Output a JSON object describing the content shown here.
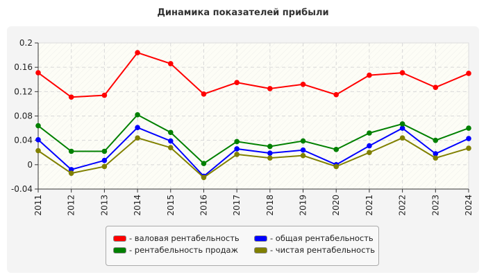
{
  "chart_data": {
    "type": "line",
    "title": "Динамика показателей прибыли",
    "xlabel": "",
    "ylabel": "",
    "x": [
      "2011",
      "2012",
      "2013",
      "2014",
      "2015",
      "2016",
      "2017",
      "2018",
      "2019",
      "2020",
      "2021",
      "2022",
      "2023",
      "2024"
    ],
    "ylim": [
      -0.04,
      0.2
    ],
    "yticks": [
      "-0.04",
      "0",
      "0.04",
      "0.08",
      "0.12",
      "0.16",
      "0.2"
    ],
    "grid": true,
    "legend_position": "bottom",
    "series": [
      {
        "name": "- валовая рентабельность",
        "color": "#ff0000",
        "values": [
          0.151,
          0.111,
          0.114,
          0.184,
          0.166,
          0.116,
          0.135,
          0.125,
          0.132,
          0.115,
          0.147,
          0.151,
          0.127,
          0.15
        ]
      },
      {
        "name": "- общая рентабельность",
        "color": "#0000ff",
        "values": [
          0.041,
          -0.008,
          0.007,
          0.061,
          0.039,
          -0.019,
          0.026,
          0.019,
          0.024,
          0.0,
          0.031,
          0.06,
          0.018,
          0.043
        ]
      },
      {
        "name": "- рентабельность продаж",
        "color": "#008000",
        "values": [
          0.064,
          0.022,
          0.022,
          0.082,
          0.053,
          0.002,
          0.038,
          0.03,
          0.039,
          0.025,
          0.052,
          0.067,
          0.04,
          0.06
        ]
      },
      {
        "name": "- чистая рентабельность",
        "color": "#808000",
        "values": [
          0.023,
          -0.014,
          -0.003,
          0.044,
          0.028,
          -0.021,
          0.017,
          0.011,
          0.015,
          -0.003,
          0.02,
          0.044,
          0.011,
          0.027
        ]
      }
    ]
  }
}
